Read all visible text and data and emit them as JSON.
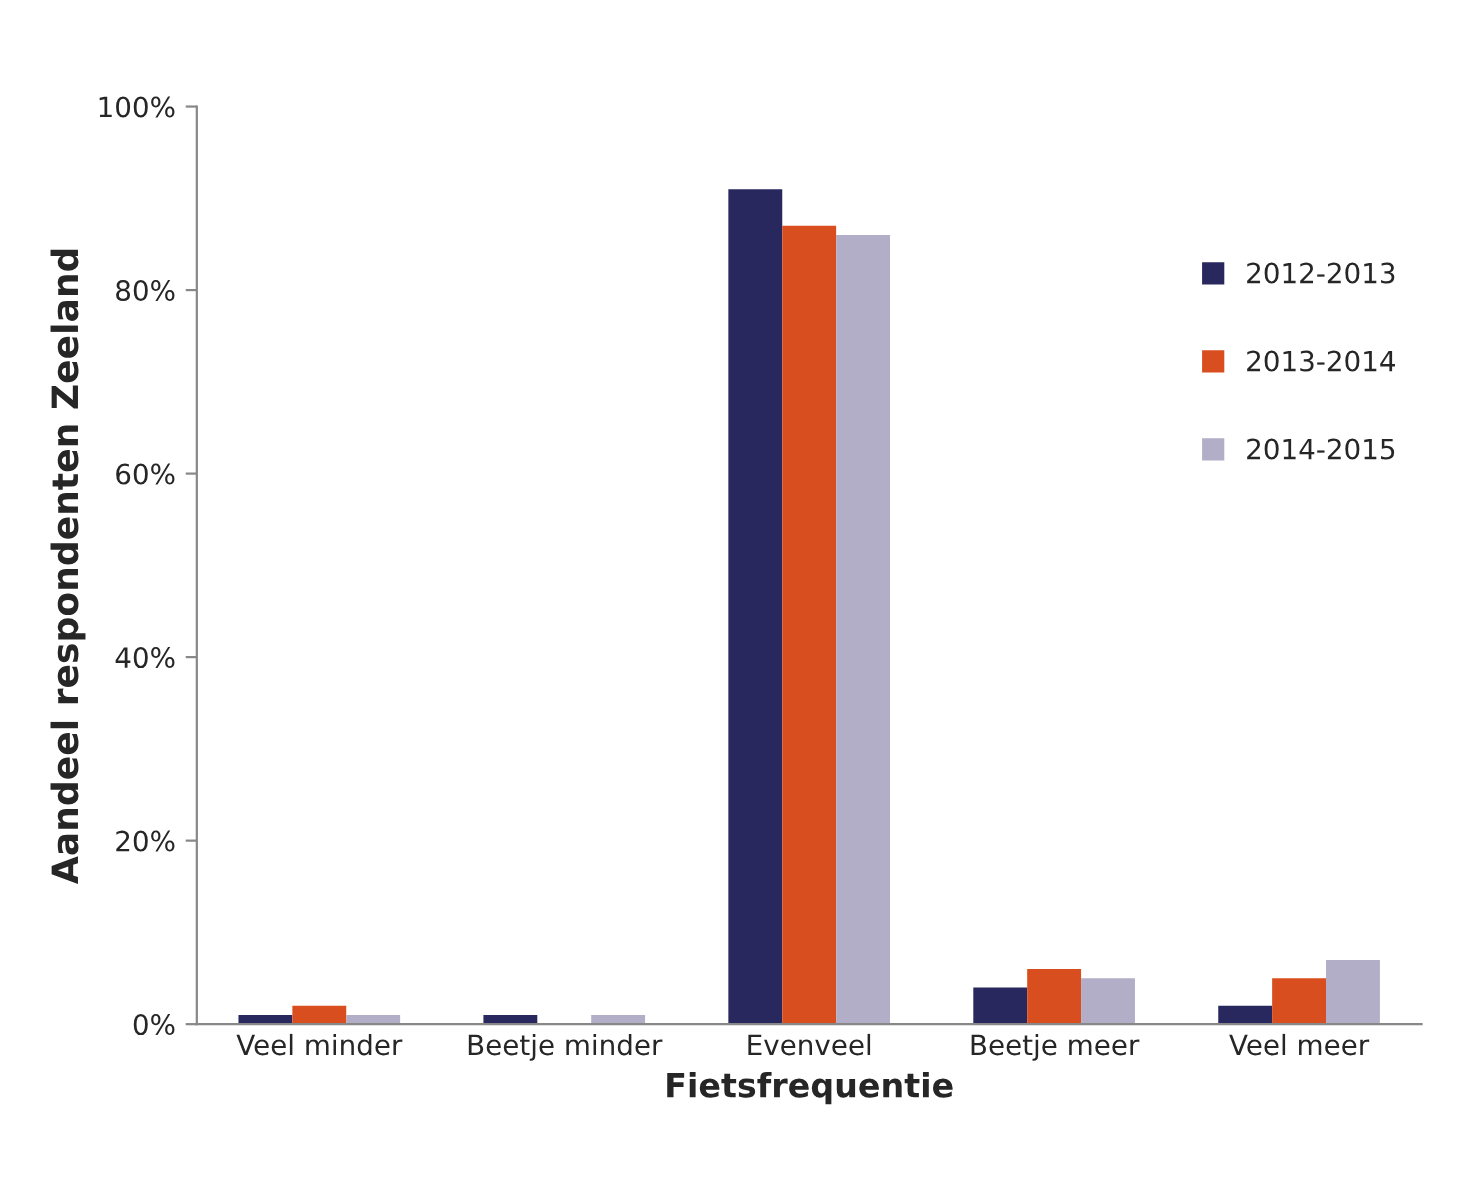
{
  "chart_data": {
    "type": "bar",
    "xlabel": "Fietsfrequentie",
    "ylabel": "Aandeel respondenten Zeeland",
    "categories": [
      "Veel minder",
      "Beetje minder",
      "Evenveel",
      "Beetje meer",
      "Veel meer"
    ],
    "series": [
      {
        "name": "2012-2013",
        "color": "#28285e",
        "values": [
          1,
          1,
          91,
          4,
          2
        ]
      },
      {
        "name": "2013-2014",
        "color": "#d94e1f",
        "values": [
          2,
          0,
          87,
          6,
          5
        ]
      },
      {
        "name": "2014-2015",
        "color": "#b3aec8",
        "values": [
          1,
          1,
          86,
          5,
          7
        ]
      }
    ],
    "ylim": [
      0,
      100
    ],
    "yticks": [
      {
        "value": 0,
        "label": "0%"
      },
      {
        "value": 20,
        "label": "20%"
      },
      {
        "value": 40,
        "label": "40%"
      },
      {
        "value": 60,
        "label": "60%"
      },
      {
        "value": 80,
        "label": "80%"
      },
      {
        "value": 100,
        "label": "100%"
      }
    ],
    "grid": false,
    "legend": "right"
  }
}
